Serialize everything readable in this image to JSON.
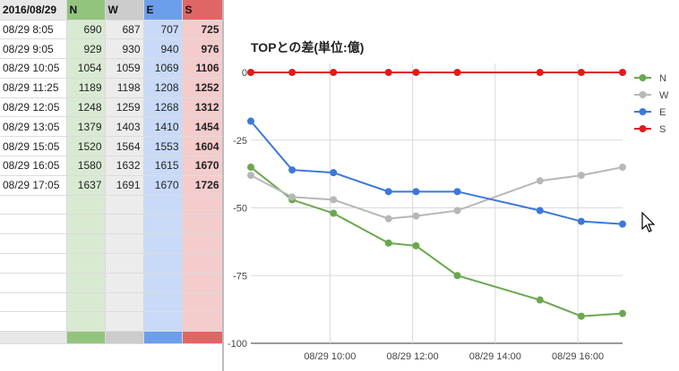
{
  "sheet": {
    "header": [
      "2016/08/29",
      "N",
      "W",
      "E",
      "S"
    ],
    "rows": [
      {
        "time": "08/29 8:05",
        "n": "690",
        "w": "687",
        "e": "707",
        "s": "725"
      },
      {
        "time": "08/29 9:05",
        "n": "929",
        "w": "930",
        "e": "940",
        "s": "976"
      },
      {
        "time": "08/29 10:05",
        "n": "1054",
        "w": "1059",
        "e": "1069",
        "s": "1106"
      },
      {
        "time": "08/29 11:25",
        "n": "1189",
        "w": "1198",
        "e": "1208",
        "s": "1252"
      },
      {
        "time": "08/29 12:05",
        "n": "1248",
        "w": "1259",
        "e": "1268",
        "s": "1312"
      },
      {
        "time": "08/29 13:05",
        "n": "1379",
        "w": "1403",
        "e": "1410",
        "s": "1454"
      },
      {
        "time": "08/29 15:05",
        "n": "1520",
        "w": "1564",
        "e": "1553",
        "s": "1604"
      },
      {
        "time": "08/29 16:05",
        "n": "1580",
        "w": "1632",
        "e": "1615",
        "s": "1670"
      },
      {
        "time": "08/29 17:05",
        "n": "1637",
        "w": "1691",
        "e": "1670",
        "s": "1726"
      }
    ],
    "column_colors": {
      "n": "#93c47d",
      "w": "#cccccc",
      "e": "#6d9eeb",
      "s": "#e06666"
    }
  },
  "chart_data": {
    "type": "line",
    "title": "TOPとの差(単位:億)",
    "x": [
      "08/29 8:05",
      "08/29 9:05",
      "08/29 10:05",
      "08/29 11:25",
      "08/29 12:05",
      "08/29 13:05",
      "08/29 15:05",
      "08/29 16:05",
      "08/29 17:05"
    ],
    "series": [
      {
        "name": "N",
        "color": "#6aa84f",
        "values": [
          -35,
          -47,
          -52,
          -63,
          -64,
          -75,
          -84,
          -90,
          -89
        ]
      },
      {
        "name": "W",
        "color": "#b7b7b7",
        "values": [
          -38,
          -46,
          -47,
          -54,
          -53,
          -51,
          -40,
          -38,
          -35
        ]
      },
      {
        "name": "E",
        "color": "#3c78d8",
        "values": [
          -18,
          -36,
          -37,
          -44,
          -44,
          -44,
          -51,
          -55,
          -56
        ]
      },
      {
        "name": "S",
        "color": "#e01b1b",
        "values": [
          0,
          0,
          0,
          0,
          0,
          0,
          0,
          0,
          0
        ]
      }
    ],
    "ylim": [
      -100,
      0
    ],
    "yticks": [
      "0",
      "-25",
      "-50",
      "-75",
      "-100"
    ],
    "xticks": [
      "08/29 10:00",
      "08/29 12:00",
      "08/29 14:00",
      "08/29 16:00"
    ],
    "grid": true,
    "legend": "right"
  }
}
